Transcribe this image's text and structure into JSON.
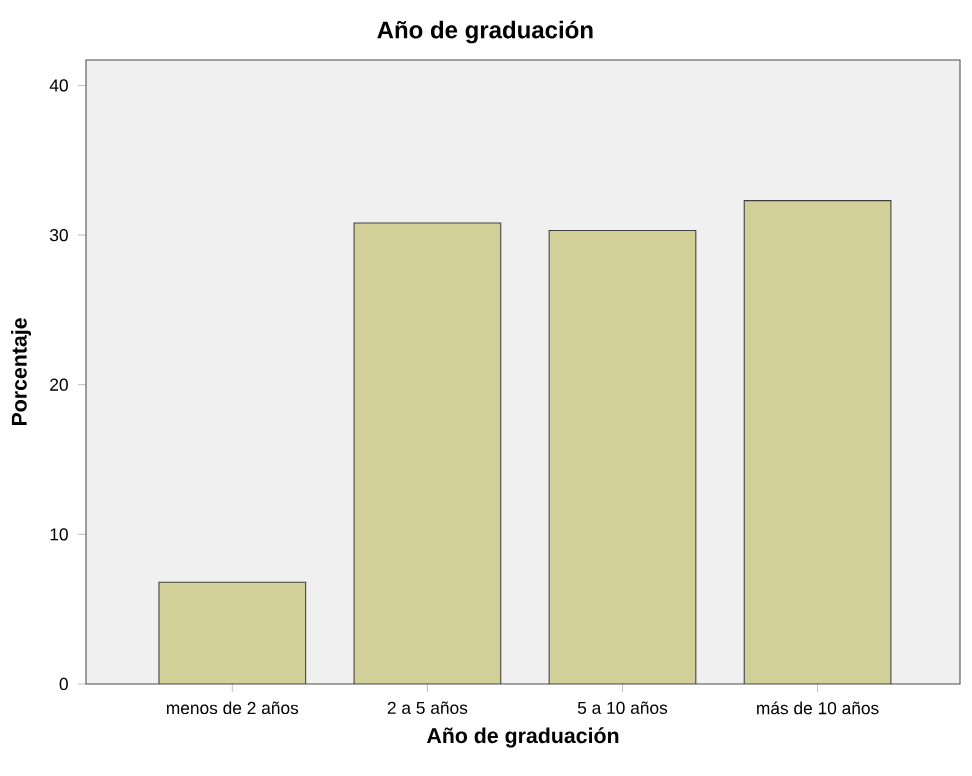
{
  "chart_data": {
    "type": "bar",
    "title": "Año de graduación",
    "xlabel": "Año de graduación",
    "ylabel": "Porcentaje",
    "categories": [
      "menos de 2 años",
      "2 a 5 años",
      "5 a 10 años",
      "más de 10 años"
    ],
    "values": [
      6.8,
      30.8,
      30.3,
      32.3
    ],
    "color": "#d3cf98",
    "ylim": [
      0,
      41.7
    ],
    "yticks": [
      0,
      10,
      20,
      30,
      40
    ],
    "grid": false
  }
}
